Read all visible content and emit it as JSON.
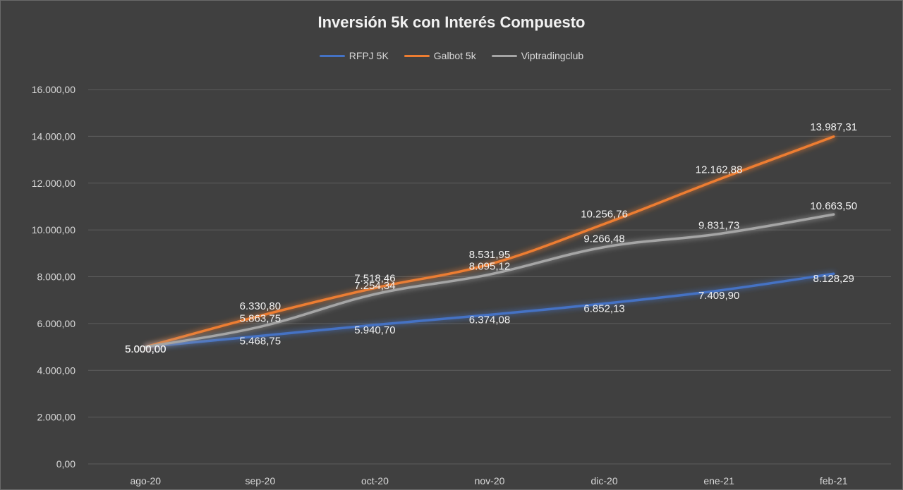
{
  "chart_data": {
    "type": "line",
    "title": "Inversión 5k con Interés Compuesto",
    "categories": [
      "ago-20",
      "sep-20",
      "oct-20",
      "nov-20",
      "dic-20",
      "ene-21",
      "feb-21"
    ],
    "ylim": [
      0,
      16000
    ],
    "yticks": [
      0,
      2000,
      4000,
      6000,
      8000,
      10000,
      12000,
      14000,
      16000
    ],
    "ytick_labels": [
      "0,00",
      "2.000,00",
      "4.000,00",
      "6.000,00",
      "8.000,00",
      "10.000,00",
      "12.000,00",
      "14.000,00",
      "16.000,00"
    ],
    "grid": true,
    "legend_position": "top",
    "series": [
      {
        "name": "RFPJ 5K",
        "color": "#4472C4",
        "values": [
          5000.0,
          5468.75,
          5940.7,
          6374.08,
          6852.13,
          7409.9,
          8128.29
        ],
        "labels": [
          "5.000,00",
          "5.468,75",
          "5.940,70",
          "6.374,08",
          "6.852,13",
          "7.409,90",
          "8.128,29"
        ]
      },
      {
        "name": "Galbot 5k",
        "color": "#ED7D31",
        "values": [
          5000.0,
          6330.8,
          7518.46,
          8531.95,
          10256.76,
          12162.88,
          13987.31
        ],
        "labels": [
          "5.000,00",
          "6.330,80",
          "7.518,46",
          "8.531,95",
          "10.256,76",
          "12.162,88",
          "13.987,31"
        ]
      },
      {
        "name": "Viptradingclub",
        "color": "#A5A5A5",
        "values": [
          5000.0,
          5863.75,
          7254.34,
          8095.12,
          9266.48,
          9831.73,
          10663.5
        ],
        "labels": [
          "5.000,00",
          "5.863,75",
          "7.254,34",
          "8.095,12",
          "9.266,48",
          "9.831,73",
          "10.663,50"
        ]
      }
    ]
  }
}
